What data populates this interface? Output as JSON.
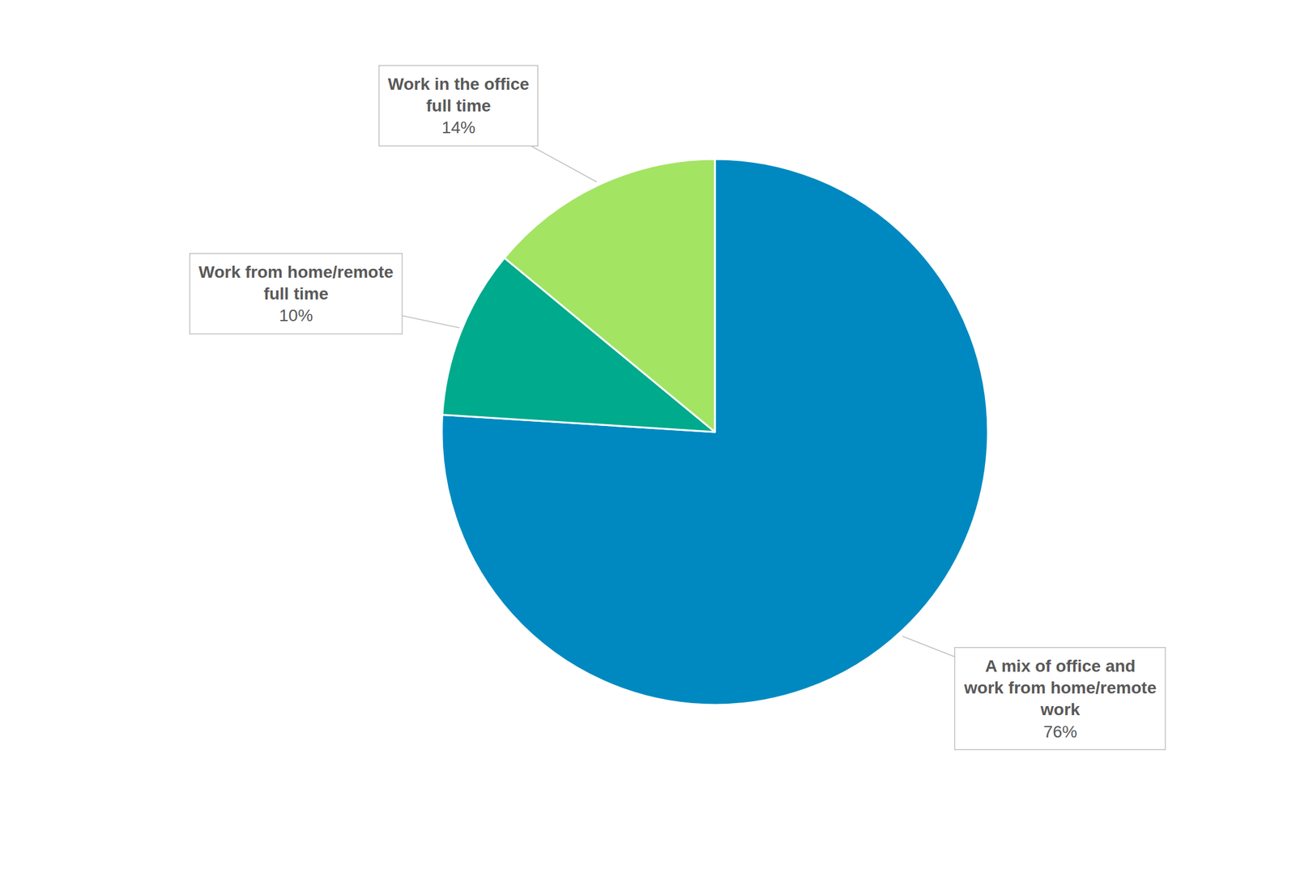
{
  "chart_data": {
    "type": "pie",
    "categories": [
      "A mix of office and work from home/remote work",
      "Work from home/remote full time",
      "Work in the office full time"
    ],
    "values": [
      76,
      10,
      14
    ],
    "value_labels": [
      "76%",
      "10%",
      "14%"
    ],
    "colors": [
      "#0089c0",
      "#00aa8c",
      "#a3e463"
    ],
    "data_labels": true
  }
}
